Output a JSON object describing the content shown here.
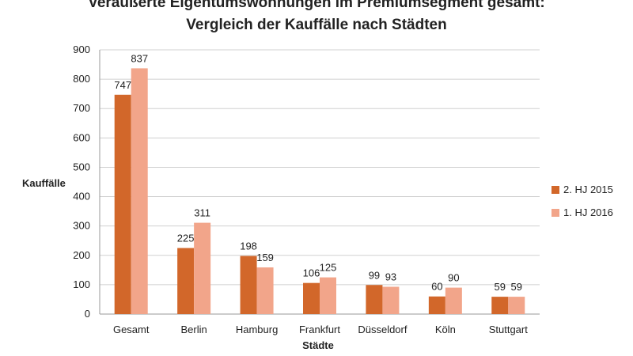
{
  "chart_data": {
    "type": "bar",
    "title": "Veräußerte Eigentumswohnungen im Premiumsegment gesamt:",
    "subtitle": "Vergleich der Kauffälle nach Städten",
    "xlabel": "Städte",
    "ylabel": "Kauffälle",
    "categories": [
      "Gesamt",
      "Berlin",
      "Hamburg",
      "Frankfurt",
      "Düsseldorf",
      "Köln",
      "Stuttgart"
    ],
    "series": [
      {
        "name": "2. HJ 2015",
        "values": [
          747,
          225,
          198,
          106,
          99,
          60,
          59
        ],
        "color": "#d2672a"
      },
      {
        "name": "1. HJ 2016",
        "values": [
          837,
          311,
          159,
          125,
          93,
          90,
          59
        ],
        "color": "#f2a58a"
      }
    ],
    "ylim": [
      0,
      900
    ],
    "yticks": [
      0,
      100,
      200,
      300,
      400,
      500,
      600,
      700,
      800,
      900
    ],
    "grid": true,
    "legend_position": "right"
  }
}
